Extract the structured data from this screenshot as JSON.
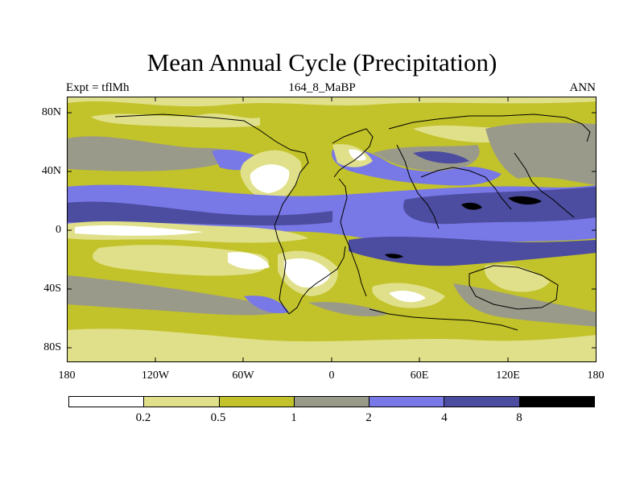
{
  "title": "Mean Annual Cycle (Precipitation)",
  "subtitle_left": "Expt = tflMh",
  "subtitle_center": "164_8_MaBP",
  "subtitle_right": "ANN",
  "y_axis_labels": [
    "80N",
    "40N",
    "0",
    "40S",
    "80S"
  ],
  "x_axis_labels": [
    "180",
    "120W",
    "60W",
    "0",
    "60E",
    "120E",
    "180"
  ],
  "colorbar": {
    "colors": [
      "#ffffff",
      "#e0e08a",
      "#c2c22a",
      "#9a9a8a",
      "#7878e6",
      "#4c4ca0",
      "#000000"
    ],
    "labels": [
      "0.2",
      "0.5",
      "1",
      "2",
      "4",
      "8"
    ]
  }
}
